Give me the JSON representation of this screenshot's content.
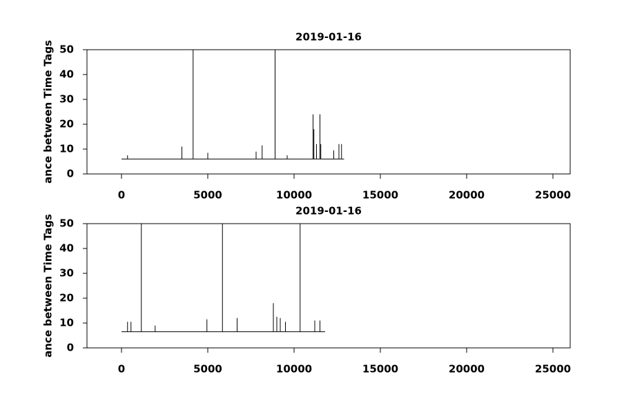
{
  "chart_data": [
    {
      "type": "line",
      "title": "2019-01-16",
      "ylabel": "ance between Time Tags",
      "x": [
        0,
        350,
        350,
        350,
        3500,
        3500,
        3500,
        4150,
        4150,
        4150,
        5000,
        5000,
        5000,
        7800,
        7800,
        7800,
        8150,
        8150,
        8150,
        8900,
        8900,
        8900,
        9600,
        9600,
        9600,
        11100,
        11100,
        11100,
        11150,
        11150,
        11150,
        11300,
        11300,
        11300,
        11500,
        11500,
        11500,
        11550,
        11550,
        11550,
        12300,
        12300,
        12300,
        12600,
        12600,
        12600,
        12750,
        12750,
        12750,
        12900
      ],
      "series": [
        {
          "color": "#000000",
          "values": [
            6,
            6,
            7.5,
            6,
            6,
            11,
            6,
            6,
            50,
            6,
            6,
            8.5,
            6,
            6,
            9,
            6,
            6,
            11.5,
            6,
            6,
            50,
            6,
            6,
            7.5,
            6,
            6,
            24,
            6,
            6,
            18,
            6,
            6,
            12,
            6,
            6,
            24,
            6,
            6,
            12,
            6,
            6,
            9.5,
            6,
            6,
            12,
            6,
            6,
            12,
            6,
            6
          ]
        }
      ],
      "xlim": [
        -2000,
        26000
      ],
      "xticks": [
        0,
        5000,
        10000,
        15000,
        20000,
        25000
      ],
      "ylim": [
        0,
        50
      ],
      "yticks": [
        0,
        10,
        20,
        30,
        40,
        50
      ]
    },
    {
      "type": "line",
      "title": "2019-01-16",
      "ylabel": "ance between Time Tags",
      "x": [
        0,
        350,
        350,
        350,
        550,
        550,
        550,
        1150,
        1150,
        1150,
        1950,
        1950,
        1950,
        4950,
        4950,
        4950,
        5850,
        5850,
        5850,
        6700,
        6700,
        6700,
        8800,
        8800,
        8800,
        9000,
        9000,
        9000,
        9200,
        9200,
        9200,
        9500,
        9500,
        9500,
        10350,
        10350,
        10350,
        11200,
        11200,
        11200,
        11500,
        11500,
        11500,
        11800
      ],
      "series": [
        {
          "color": "#000000",
          "values": [
            6.5,
            6.5,
            10.5,
            6.5,
            6.5,
            10.5,
            6.5,
            6.5,
            50,
            6.5,
            6.5,
            9,
            6.5,
            6.5,
            11.5,
            6.5,
            6.5,
            50,
            6.5,
            6.5,
            12,
            6.5,
            6.5,
            18,
            6.5,
            6.5,
            12.5,
            6.5,
            6.5,
            12,
            6.5,
            6.5,
            10.5,
            6.5,
            6.5,
            50,
            6.5,
            6.5,
            11,
            6.5,
            6.5,
            11,
            6.5,
            6.5
          ]
        }
      ],
      "xlim": [
        -2000,
        26000
      ],
      "xticks": [
        0,
        5000,
        10000,
        15000,
        20000,
        25000
      ],
      "ylim": [
        0,
        50
      ],
      "yticks": [
        0,
        10,
        20,
        30,
        40,
        50
      ]
    }
  ]
}
